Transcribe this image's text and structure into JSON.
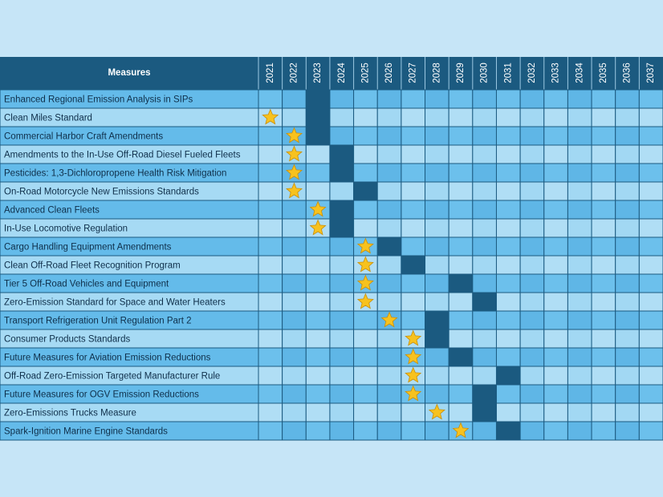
{
  "table": {
    "header": "Measures",
    "years": [
      2021,
      2022,
      2023,
      2024,
      2025,
      2026,
      2027,
      2028,
      2029,
      2030,
      2031,
      2032,
      2033,
      2034,
      2035,
      2036,
      2037
    ],
    "rows": [
      {
        "measure": "Enhanced Regional Emission Analysis in SIPs",
        "star": null,
        "milestone": 2023
      },
      {
        "measure": "Clean Miles Standard",
        "star": 2021,
        "milestone": 2023
      },
      {
        "measure": "Commercial Harbor Craft Amendments",
        "star": 2022,
        "milestone": 2023
      },
      {
        "measure": "Amendments to the In-Use Off-Road Diesel Fueled Fleets",
        "star": 2022,
        "milestone": 2024
      },
      {
        "measure": "Pesticides: 1,3-Dichloropropene Health Risk Mitigation",
        "star": 2022,
        "milestone": 2024
      },
      {
        "measure": "On-Road Motorcycle New Emissions Standards",
        "star": 2022,
        "milestone": 2025
      },
      {
        "measure": "Advanced Clean Fleets",
        "star": 2023,
        "milestone": 2024
      },
      {
        "measure": "In-Use Locomotive Regulation",
        "star": 2023,
        "milestone": 2024
      },
      {
        "measure": "Cargo Handling Equipment Amendments",
        "star": 2025,
        "milestone": 2026
      },
      {
        "measure": "Clean Off-Road Fleet Recognition Program",
        "star": 2025,
        "milestone": 2027
      },
      {
        "measure": "Tier 5 Off-Road Vehicles and Equipment",
        "star": 2025,
        "milestone": 2029
      },
      {
        "measure": "Zero-Emission Standard for Space and Water Heaters",
        "star": 2025,
        "milestone": 2030
      },
      {
        "measure": "Transport Refrigeration Unit Regulation Part 2",
        "star": 2026,
        "milestone": 2028
      },
      {
        "measure": "Consumer Products Standards",
        "star": 2027,
        "milestone": 2028
      },
      {
        "measure": "Future Measures for Aviation Emission Reductions",
        "star": 2027,
        "milestone": 2029
      },
      {
        "measure": "Off-Road Zero-Emission Targeted Manufacturer Rule",
        "star": 2027,
        "milestone": 2031
      },
      {
        "measure": "Future Measures for OGV Emission Reductions",
        "star": 2027,
        "milestone": 2030
      },
      {
        "measure": "Zero-Emissions Trucks Measure",
        "star": 2028,
        "milestone": 2030
      },
      {
        "measure": "Spark-Ignition Marine Engine Standards",
        "star": 2029,
        "milestone": 2031
      }
    ]
  }
}
